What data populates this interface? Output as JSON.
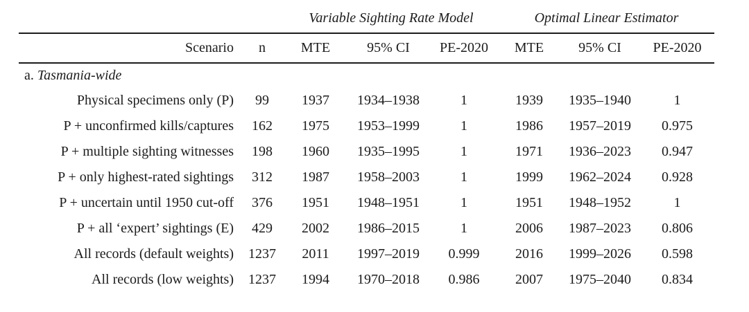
{
  "table": {
    "group_headers": {
      "vsrm": "Variable Sighting Rate Model",
      "ole": "Optimal Linear Estimator"
    },
    "columns": {
      "scenario": "Scenario",
      "n": "n",
      "mte1": "MTE",
      "ci1": "95% CI",
      "pe1": "PE-2020",
      "mte2": "MTE",
      "ci2": "95% CI",
      "pe2": "PE-2020"
    },
    "section": {
      "prefix": "a. ",
      "label": "Tasmania-wide"
    },
    "rows": [
      {
        "cells": [
          "Physical specimens only (P)",
          "99",
          "1937",
          "1934–1938",
          "1",
          "1939",
          "1935–1940",
          "1"
        ]
      },
      {
        "cells": [
          "P + unconfirmed kills/captures",
          "162",
          "1975",
          "1953–1999",
          "1",
          "1986",
          "1957–2019",
          "0.975"
        ]
      },
      {
        "cells": [
          "P + multiple sighting witnesses",
          "198",
          "1960",
          "1935–1995",
          "1",
          "1971",
          "1936–2023",
          "0.947"
        ]
      },
      {
        "cells": [
          "P + only highest-rated sightings",
          "312",
          "1987",
          "1958–2003",
          "1",
          "1999",
          "1962–2024",
          "0.928"
        ]
      },
      {
        "cells": [
          "P + uncertain until 1950 cut-off",
          "376",
          "1951",
          "1948–1951",
          "1",
          "1951",
          "1948–1952",
          "1"
        ]
      },
      {
        "cells": [
          "P + all ‘expert’ sightings (E)",
          "429",
          "2002",
          "1986–2015",
          "1",
          "2006",
          "1987–2023",
          "0.806"
        ]
      },
      {
        "cells": [
          "All records (default weights)",
          "1237",
          "2011",
          "1997–2019",
          "0.999",
          "2016",
          "1999–2026",
          "0.598"
        ]
      },
      {
        "cells": [
          "All records (low weights)",
          "1237",
          "1994",
          "1970–2018",
          "0.986",
          "2007",
          "1975–2040",
          "0.834"
        ]
      }
    ]
  }
}
